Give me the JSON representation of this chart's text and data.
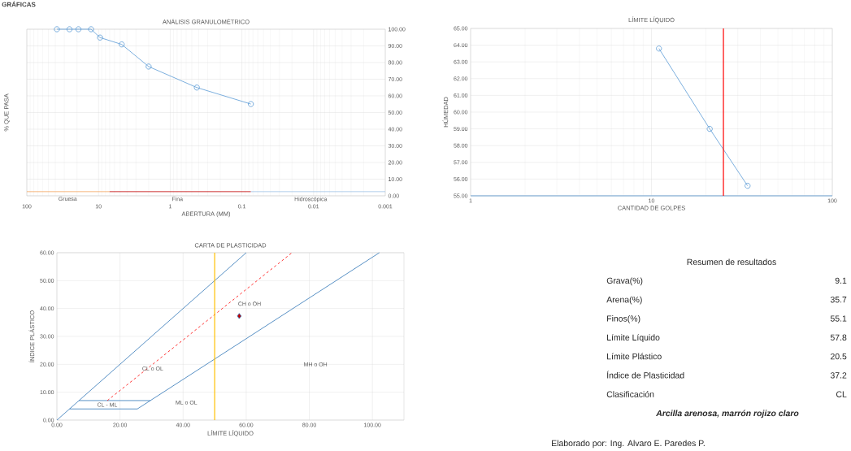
{
  "chart_data": [
    {
      "type": "line",
      "title": "ANÁLISIS GRANULOMÉTRICO",
      "xlabel": "ABERTURA (MM)",
      "ylabel": "% QUE PASA",
      "log": "x",
      "grid": true,
      "xlim": [
        100,
        0.001
      ],
      "xticks": [
        100,
        10,
        1,
        0.1,
        0.01,
        0.001
      ],
      "ylim": [
        0,
        100
      ],
      "yticks": [
        {
          "value": 0,
          "label": "0.00"
        },
        {
          "value": 10,
          "label": "10.00"
        },
        {
          "value": 20,
          "label": "20.00"
        },
        {
          "value": 30,
          "label": "30.00"
        },
        {
          "value": 40,
          "label": "40.00"
        },
        {
          "value": 50,
          "label": "50.00"
        },
        {
          "value": 60,
          "label": "60.00"
        },
        {
          "value": 70,
          "label": "70.00"
        },
        {
          "value": 80,
          "label": "80.00"
        },
        {
          "value": 90,
          "label": "90.00"
        },
        {
          "value": 100,
          "label": "100.00"
        }
      ],
      "series": [
        {
          "color": "#5b9bd5",
          "marker": "circle",
          "x": [
            38.1,
            25.4,
            19.05,
            12.7,
            9.525,
            4.75,
            2.0,
            0.425,
            0.075
          ],
          "values": [
            100,
            100,
            100,
            100,
            95,
            90.9,
            77.6,
            65,
            55.1
          ]
        },
        {
          "color": "#f4a460",
          "x": [
            100,
            7
          ],
          "values": [
            2.5,
            2.5
          ]
        },
        {
          "color": "#c00000",
          "x": [
            7,
            0.075
          ],
          "values": [
            2.5,
            2.5
          ]
        },
        {
          "color": "#9dc3e6",
          "x": [
            0.075,
            0.001
          ],
          "values": [
            2.5,
            2.5
          ]
        }
      ],
      "annotations": [
        "GRÁFICAS",
        "Gruesa",
        "Fina",
        "Hidroscópica"
      ]
    },
    {
      "type": "line",
      "title": "LÍMITE LÍQUIDO",
      "xlabel": "CANTIDAD DE GOLPES",
      "ylabel": "HÚMEDAD",
      "log": "x",
      "grid": true,
      "xlim": [
        1,
        100
      ],
      "xticks": [
        1,
        10,
        100
      ],
      "ylim": [
        55,
        65
      ],
      "yticks": [
        {
          "value": 55,
          "label": "55.00"
        },
        {
          "value": 56,
          "label": "56.00"
        },
        {
          "value": 57,
          "label": "57.00"
        },
        {
          "value": 58,
          "label": "58.00"
        },
        {
          "value": 59,
          "label": "59.00"
        },
        {
          "value": 60,
          "label": "60.00"
        },
        {
          "value": 61,
          "label": "61.00"
        },
        {
          "value": 62,
          "label": "62.00"
        },
        {
          "value": 63,
          "label": "63.00"
        },
        {
          "value": 64,
          "label": "64.00"
        },
        {
          "value": 65,
          "label": "65.00"
        }
      ],
      "series": [
        {
          "color": "#5b9bd5",
          "marker": "circle",
          "x": [
            11,
            21,
            34
          ],
          "values": [
            63.8,
            59.0,
            55.6
          ]
        },
        {
          "color": "#5b9bd5",
          "x": [
            1,
            100
          ],
          "values": [
            55,
            55
          ]
        }
      ],
      "ref_lines": [
        {
          "axis": "x",
          "value": 25,
          "color": "#ff0000"
        }
      ]
    },
    {
      "type": "line",
      "title": "CARTA DE PLASTICIDAD",
      "xlabel": "LÍMITE LÍQUIDO",
      "ylabel": "ÍNDICE PLÁSTICO",
      "grid": true,
      "xlim": [
        0,
        110
      ],
      "xticks": [
        {
          "value": 0,
          "label": "0.00"
        },
        {
          "value": 20,
          "label": "20.00"
        },
        {
          "value": 40,
          "label": "40.00"
        },
        {
          "value": 60,
          "label": "60.00"
        },
        {
          "value": 80,
          "label": "80.00"
        },
        {
          "value": 100,
          "label": "100.00"
        }
      ],
      "ylim": [
        0,
        60
      ],
      "yticks": [
        {
          "value": 0,
          "label": "0.00"
        },
        {
          "value": 10,
          "label": "10.00"
        },
        {
          "value": 20,
          "label": "20.00"
        },
        {
          "value": 30,
          "label": "30.00"
        },
        {
          "value": 40,
          "label": "40.00"
        },
        {
          "value": 50,
          "label": "50.00"
        },
        {
          "value": 60,
          "label": "60.00"
        }
      ],
      "series": [
        {
          "color": "#2e75b6",
          "x": [
            0,
            60
          ],
          "values": [
            0,
            60
          ]
        },
        {
          "color": "#2e75b6",
          "x": [
            25.5,
            102.2
          ],
          "values": [
            4,
            60
          ]
        },
        {
          "color": "#2e75b6",
          "x": [
            4,
            25.5
          ],
          "values": [
            4,
            4
          ]
        },
        {
          "color": "#2e75b6",
          "x": [
            7,
            29.6
          ],
          "values": [
            7,
            7
          ]
        },
        {
          "color": "#ff0000",
          "line_style": "dashed",
          "x": [
            16,
            74.5
          ],
          "values": [
            7,
            60
          ]
        },
        {
          "type": "scatter",
          "color": "#c00000",
          "marker": "diamond",
          "x": [
            57.8
          ],
          "values": [
            37.3
          ]
        }
      ],
      "ref_lines": [
        {
          "axis": "x",
          "value": 50,
          "color": "#ffc000"
        }
      ],
      "annotations": [
        "CH o OH",
        "CL o OL",
        "MH o OH",
        "ML o OL",
        "CL - ML"
      ]
    },
    {
      "type": "other",
      "title": "Resumen de resultados",
      "annotations": [
        "Grava(%)",
        "9.1",
        "Arena(%)",
        "35.7",
        "Finos(%)",
        "55.1",
        "Límite Líquido",
        "57.8",
        "Límite Plástico",
        "20.5",
        "Índice de Plasticidad",
        "37.2",
        "Clasificación",
        "CL",
        "Arcilla arenosa, marrón rojizo claro",
        "Elaborado por: Ing. Alvaro E. Paredes P."
      ]
    }
  ]
}
